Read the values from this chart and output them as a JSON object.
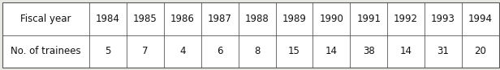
{
  "col_headers": [
    "Fiscal year",
    "1984",
    "1985",
    "1986",
    "1987",
    "1988",
    "1989",
    "1990",
    "1991",
    "1992",
    "1993",
    "1994"
  ],
  "row_label": "No. of trainees",
  "values": [
    "5",
    "7",
    "4",
    "6",
    "8",
    "15",
    "14",
    "38",
    "14",
    "31",
    "20"
  ],
  "bg_color": "#e8e8e4",
  "cell_bg": "#ffffff",
  "border_color": "#555555",
  "text_color": "#111111",
  "font_size": 8.5,
  "figwidth": 6.16,
  "figheight": 0.87,
  "dpi": 100
}
